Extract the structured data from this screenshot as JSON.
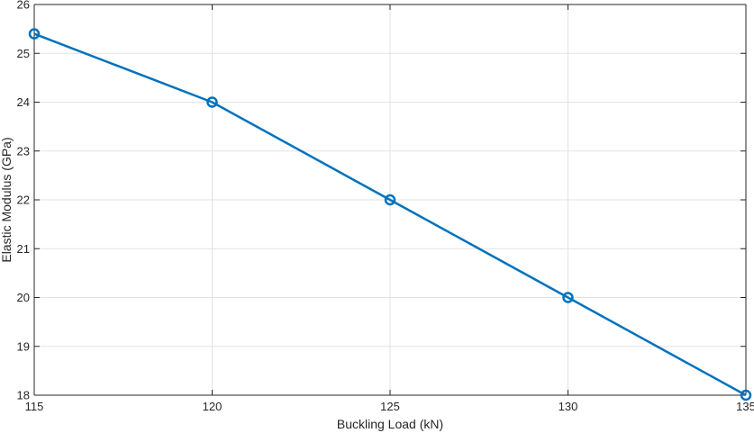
{
  "chart_data": {
    "type": "line",
    "title": "",
    "xlabel": "Buckling Load (kN)",
    "ylabel": "Elastic Modulus (GPa)",
    "xlim": [
      115,
      135
    ],
    "ylim": [
      18,
      26
    ],
    "xticks": [
      115,
      120,
      125,
      130,
      135
    ],
    "yticks": [
      18,
      19,
      20,
      21,
      22,
      23,
      24,
      25,
      26
    ],
    "grid": true,
    "legend": false,
    "series": [
      {
        "color": "#0072BD",
        "marker": "circle",
        "x": [
          115,
          120,
          125,
          130,
          135
        ],
        "y": [
          25.4,
          24,
          22,
          20,
          18
        ]
      }
    ]
  }
}
